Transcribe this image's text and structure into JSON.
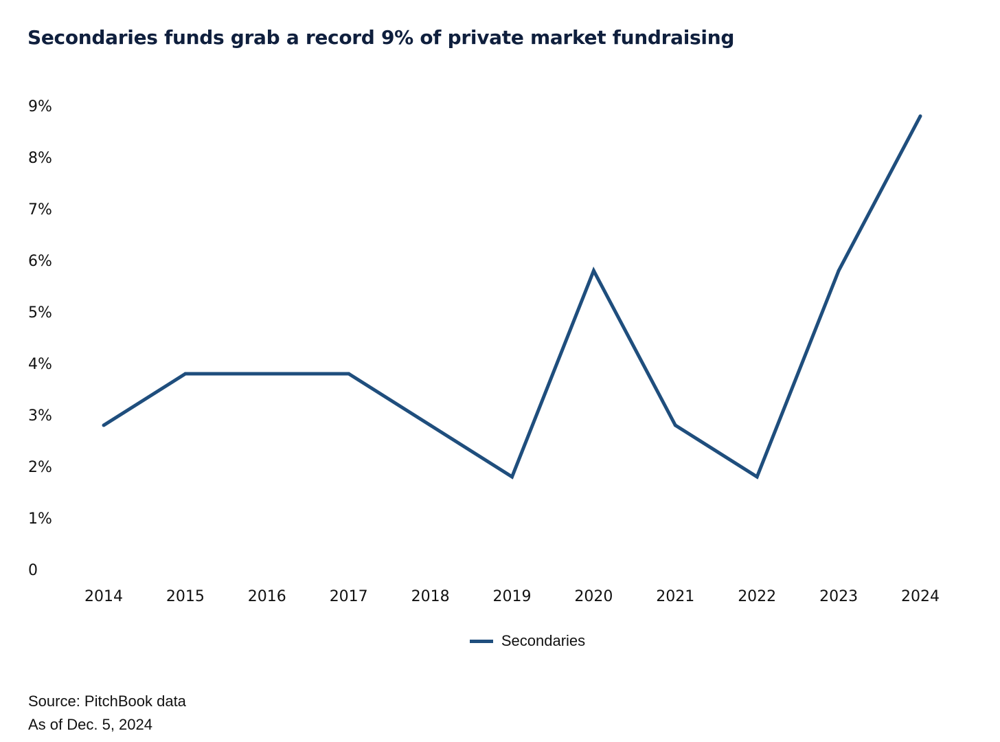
{
  "colors": {
    "title": "#0f1f3d",
    "series": "#1f4e7d",
    "text": "#111111",
    "background": "#ffffff"
  },
  "footnotes": {
    "source": "Source: PitchBook data",
    "as_of": "As of Dec. 5, 2024"
  },
  "chart_data": {
    "type": "line",
    "title": "Secondaries funds grab a record 9% of private market fundraising",
    "xlabel": "",
    "ylabel": "",
    "categories": [
      "2014",
      "2015",
      "2016",
      "2017",
      "2018",
      "2019",
      "2020",
      "2021",
      "2022",
      "2023",
      "2024"
    ],
    "series": [
      {
        "name": "Secondaries",
        "values": [
          2.8,
          3.8,
          3.8,
          3.8,
          2.8,
          1.8,
          5.8,
          2.8,
          1.8,
          5.8,
          8.8
        ]
      }
    ],
    "ylim": [
      0,
      9
    ],
    "yticks": [
      {
        "value": 0,
        "label": "0"
      },
      {
        "value": 1,
        "label": "1%"
      },
      {
        "value": 2,
        "label": "2%"
      },
      {
        "value": 3,
        "label": "3%"
      },
      {
        "value": 4,
        "label": "4%"
      },
      {
        "value": 5,
        "label": "5%"
      },
      {
        "value": 6,
        "label": "6%"
      },
      {
        "value": 7,
        "label": "7%"
      },
      {
        "value": 8,
        "label": "8%"
      },
      {
        "value": 9,
        "label": "9%"
      }
    ],
    "grid": false,
    "legend_position": "bottom-center"
  }
}
